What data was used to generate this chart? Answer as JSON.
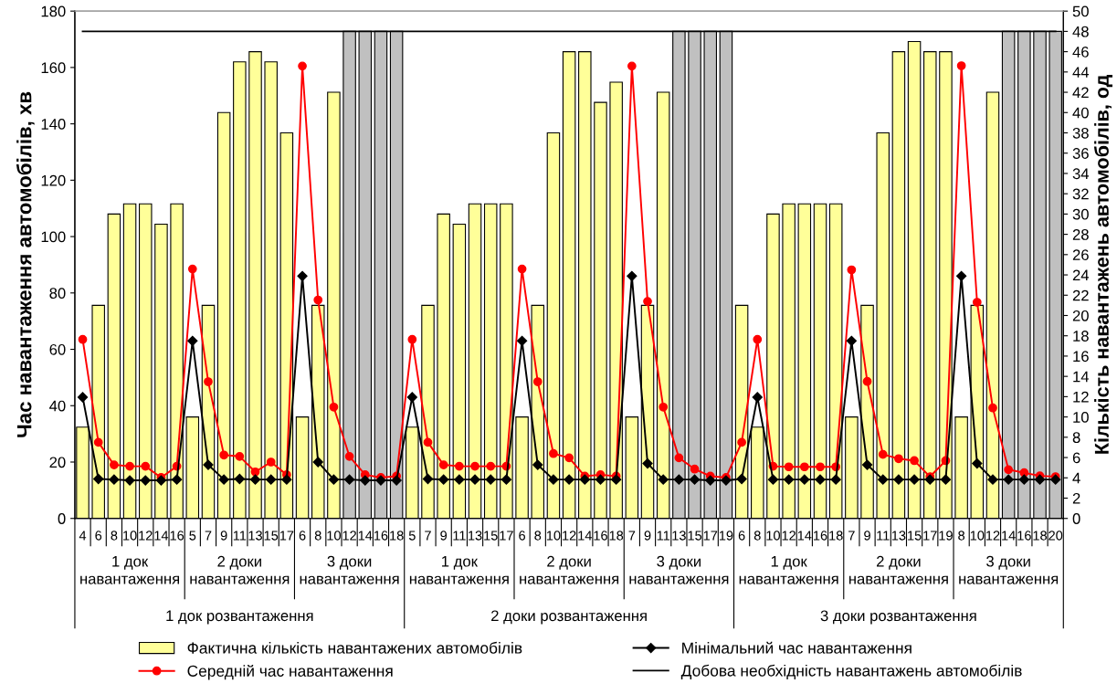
{
  "chart_data": {
    "type": "bar",
    "ylabel": "Час навантаження автомобілів, хв",
    "y2label": "Кількість навантажень автомобілів, од",
    "categories": [
      "4",
      "6",
      "8",
      "10",
      "12",
      "14",
      "16",
      "5",
      "7",
      "9",
      "11",
      "13",
      "15",
      "17",
      "6",
      "8",
      "10",
      "12",
      "14",
      "16",
      "18",
      "5",
      "7",
      "9",
      "11",
      "13",
      "15",
      "17",
      "6",
      "8",
      "10",
      "12",
      "14",
      "16",
      "18",
      "7",
      "9",
      "11",
      "13",
      "15",
      "17",
      "19",
      "6",
      "8",
      "10",
      "12",
      "14",
      "16",
      "18",
      "7",
      "9",
      "11",
      "13",
      "15",
      "17",
      "19",
      "8",
      "10",
      "12",
      "14",
      "16",
      "18",
      "20"
    ],
    "ylim": [
      0,
      180
    ],
    "yticks": [
      0,
      20,
      40,
      60,
      80,
      100,
      120,
      140,
      160,
      180
    ],
    "y2lim": [
      0,
      50
    ],
    "y2ticks": [
      0,
      2,
      4,
      6,
      8,
      10,
      12,
      14,
      16,
      18,
      20,
      22,
      24,
      26,
      28,
      30,
      32,
      34,
      36,
      38,
      40,
      42,
      44,
      46,
      48,
      50
    ],
    "grid": false,
    "legend": "bottom",
    "line_style": "solid",
    "series": [
      {
        "name": "Фактична кількість навантажених автомобілів",
        "axis": "y2",
        "color": "#ffff99",
        "colors": [
          "#ffff99",
          "#ffff99",
          "#ffff99",
          "#ffff99",
          "#ffff99",
          "#ffff99",
          "#ffff99",
          "#ffff99",
          "#ffff99",
          "#ffff99",
          "#ffff99",
          "#ffff99",
          "#ffff99",
          "#ffff99",
          "#ffff99",
          "#ffff99",
          "#ffff99",
          "#c0c0c0",
          "#c0c0c0",
          "#c0c0c0",
          "#c0c0c0",
          "#ffff99",
          "#ffff99",
          "#ffff99",
          "#ffff99",
          "#ffff99",
          "#ffff99",
          "#ffff99",
          "#ffff99",
          "#ffff99",
          "#ffff99",
          "#ffff99",
          "#ffff99",
          "#ffff99",
          "#ffff99",
          "#ffff99",
          "#ffff99",
          "#ffff99",
          "#c0c0c0",
          "#c0c0c0",
          "#c0c0c0",
          "#c0c0c0",
          "#ffff99",
          "#ffff99",
          "#ffff99",
          "#ffff99",
          "#ffff99",
          "#ffff99",
          "#ffff99",
          "#ffff99",
          "#ffff99",
          "#ffff99",
          "#ffff99",
          "#ffff99",
          "#ffff99",
          "#ffff99",
          "#ffff99",
          "#ffff99",
          "#ffff99",
          "#c0c0c0",
          "#c0c0c0",
          "#c0c0c0",
          "#c0c0c0"
        ],
        "values": [
          9,
          21,
          30,
          31,
          31,
          29,
          31,
          10,
          21,
          40,
          45,
          46,
          45,
          38,
          10,
          21,
          42,
          48,
          48,
          48,
          48,
          9,
          21,
          30,
          29,
          31,
          31,
          31,
          10,
          21,
          38,
          46,
          46,
          41,
          43,
          10,
          21,
          42,
          48,
          48,
          48,
          48,
          21,
          9,
          30,
          31,
          31,
          31,
          31,
          10,
          21,
          38,
          46,
          47,
          46,
          46,
          10,
          21,
          42,
          48,
          48,
          48,
          48
        ]
      },
      {
        "name": "Середній час навантаження",
        "type": "line",
        "marker": "circle",
        "color": "#ff0000",
        "values": [
          63.5,
          27,
          19,
          18.5,
          18.5,
          14.5,
          18.5,
          88.5,
          48.5,
          22.5,
          22,
          16.5,
          20,
          15.5,
          160.5,
          77.5,
          39.5,
          22,
          15.5,
          14.5,
          15,
          63.5,
          27,
          19,
          18.5,
          18.5,
          18.5,
          18.5,
          88.5,
          48.5,
          23,
          21.5,
          15,
          15.5,
          15,
          160.5,
          77,
          39.5,
          21.5,
          17.5,
          15,
          14.5,
          27,
          63.5,
          18.5,
          18.3,
          18.3,
          18.3,
          18.3,
          88.2,
          48.6,
          22.7,
          21.2,
          20.5,
          14.8,
          20.5,
          160.6,
          76.7,
          39.2,
          17.3,
          16.2,
          15.1,
          14.8
        ]
      },
      {
        "name": "Мінімальний час навантаження",
        "type": "line",
        "marker": "diamond",
        "color": "#000000",
        "values": [
          43,
          14,
          13.8,
          13.5,
          13.5,
          13.5,
          13.8,
          63,
          19,
          13.8,
          14,
          13.8,
          13.8,
          13.8,
          86,
          20,
          13.8,
          13.8,
          13.5,
          13.5,
          13.5,
          43,
          14,
          13.8,
          13.8,
          13.8,
          13.8,
          13.8,
          63,
          19,
          13.8,
          13.8,
          13.8,
          13.8,
          13.8,
          86,
          19.5,
          13.8,
          13.8,
          13.8,
          13.5,
          13.5,
          14,
          43,
          13.8,
          13.8,
          13.8,
          13.8,
          13.8,
          63,
          19,
          13.8,
          13.8,
          13.8,
          13.8,
          13.8,
          86,
          19.5,
          13.8,
          13.8,
          13.8,
          13.8,
          13.8
        ]
      },
      {
        "name": "Добова необхідність навантажень автомобілів",
        "type": "line",
        "axis": "y2",
        "marker": "none",
        "color": "#000000",
        "values": [
          48,
          48,
          48,
          48,
          48,
          48,
          48,
          48,
          48,
          48,
          48,
          48,
          48,
          48,
          48,
          48,
          48,
          48,
          48,
          48,
          48,
          48,
          48,
          48,
          48,
          48,
          48,
          48,
          48,
          48,
          48,
          48,
          48,
          48,
          48,
          48,
          48,
          48,
          48,
          48,
          48,
          48,
          48,
          48,
          48,
          48,
          48,
          48,
          48,
          48,
          48,
          48,
          48,
          48,
          48,
          48,
          48,
          48,
          48,
          48,
          48,
          48,
          48
        ]
      }
    ],
    "annotations": [
      "1 док\nнавантаження",
      "2 доки\nнавантаження",
      "3 доки\nнавантаження",
      "1 док\nнавантаження",
      "2 доки\nнавантаження",
      "3 доки\nнавантаження",
      "1 док\nнавантаження",
      "2 доки\nнавантаження",
      "3 доки\nнавантаження",
      "1 док розвантаження",
      "2 доки розвантаження",
      "3 доки розвантаження"
    ]
  }
}
